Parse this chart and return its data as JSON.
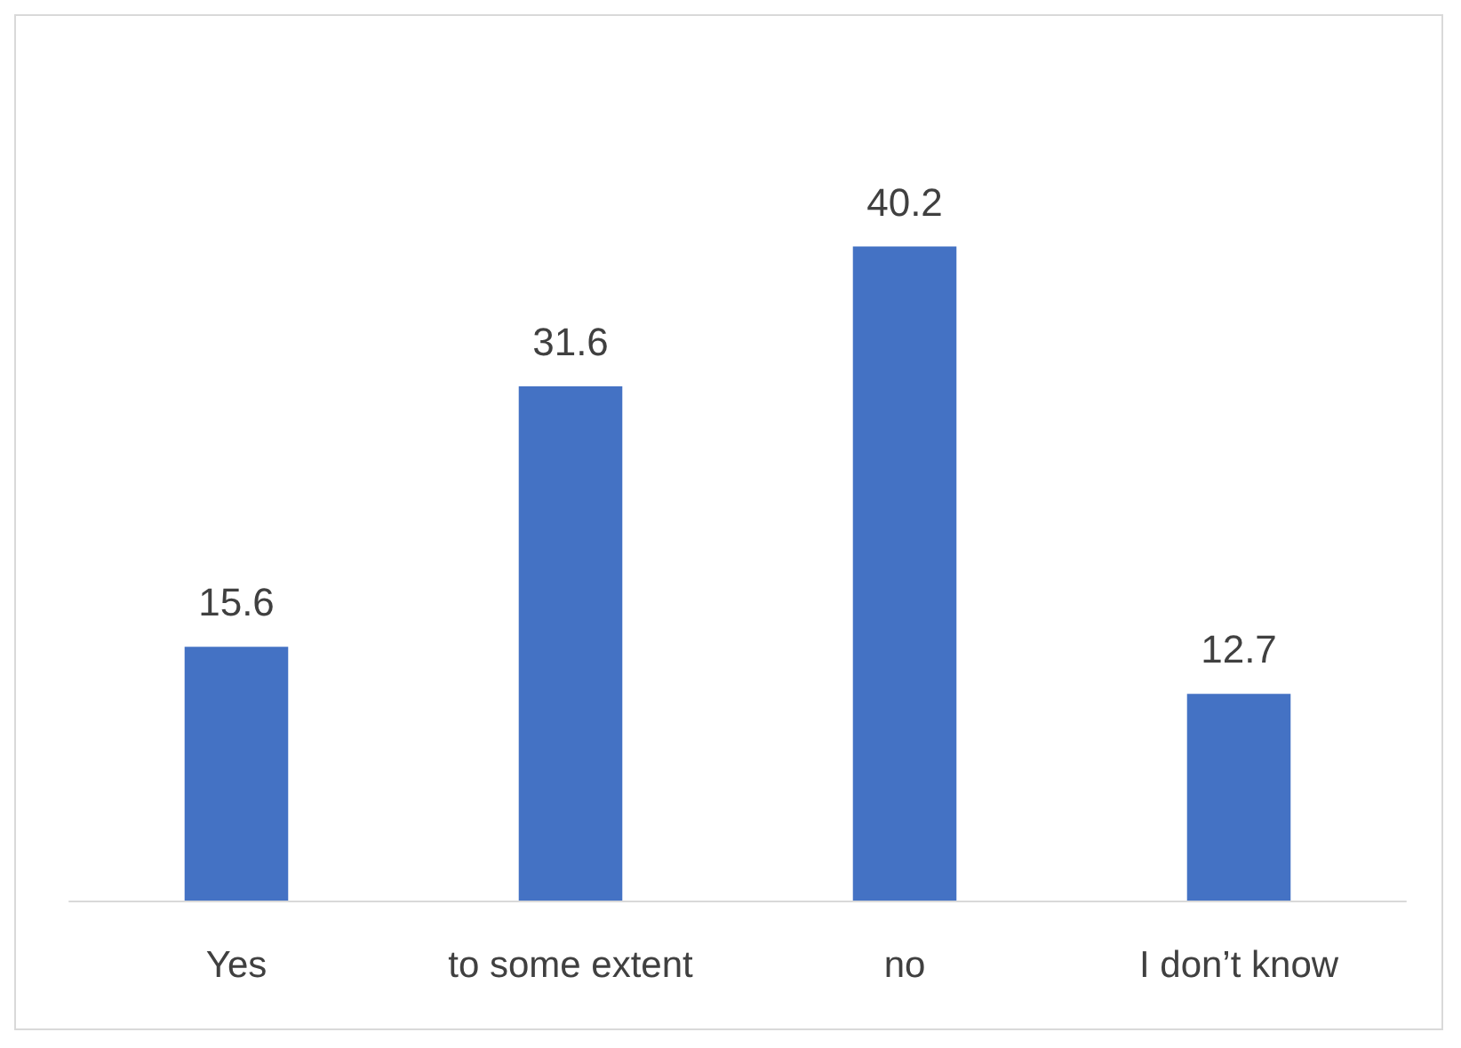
{
  "chart_data": {
    "type": "bar",
    "categories": [
      "Yes",
      "to some extent",
      "no",
      "I don’t know"
    ],
    "values": [
      15.6,
      31.6,
      40.2,
      12.7
    ],
    "color": "#4472c4",
    "data_labels": true,
    "tick_labels": "x"
  }
}
